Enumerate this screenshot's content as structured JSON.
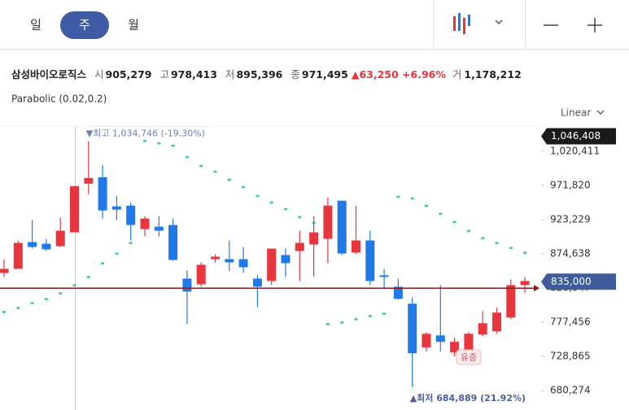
{
  "toolbar": {
    "tabs": [
      "일",
      "주",
      "월"
    ],
    "selected": 1
  },
  "info": {
    "name": "삼성바이오로직스",
    "fields": [
      {
        "label": "시",
        "value": "905,279"
      },
      {
        "label": "고",
        "value": "978,413"
      },
      {
        "label": "저",
        "value": "895,396"
      },
      {
        "label": "종",
        "value": "971,495"
      }
    ],
    "change": "▲63,250 +6.96%",
    "volume_label": "거",
    "volume": "1,178,212"
  },
  "chart_data": {
    "type": "candlestick",
    "indicator": "Parabolic (0.02,0.2)",
    "scale": "Linear",
    "up_color": "#e8363f",
    "down_color": "#1f7ae8",
    "sar_color": "#2fd09b",
    "ylim": [
      652600,
      1055100
    ],
    "yticks": [
      {
        "value": 680274,
        "label": "680,274"
      },
      {
        "value": 728865,
        "label": "728,865"
      },
      {
        "value": 777456,
        "label": "777,456"
      },
      {
        "value": 826047,
        "label": "826,047"
      },
      {
        "value": 874638,
        "label": "874,638"
      },
      {
        "value": 923229,
        "label": "923,229"
      },
      {
        "value": 971820,
        "label": "971,820"
      },
      {
        "value": 1020411,
        "label": "1,020,411"
      }
    ],
    "open": [
      847500,
      853300,
      891300,
      889000,
      885600,
      905200,
      974400,
      983600,
      942100,
      943200,
      909800,
      913300,
      915600,
      839400,
      831400,
      867100,
      867100,
      867100,
      839400,
      836000,
      872900,
      878700,
      887900,
      896000,
      950200,
      876400,
      893700,
      844100,
      827900,
      803700,
      741400,
      758700,
      734500,
      737900,
      759900,
      764500,
      784100,
      830200
    ],
    "high": [
      867100,
      893700,
      922500,
      896000,
      925900,
      970900,
      1034746,
      1000900,
      957100,
      947900,
      928300,
      928300,
      924800,
      851000,
      862500,
      874000,
      893700,
      884400,
      844100,
      882100,
      882100,
      907500,
      928300,
      954800,
      950200,
      943200,
      907500,
      853300,
      839400,
      812900,
      763300,
      830200,
      755200,
      763300,
      793300,
      797900,
      838300,
      841800
    ],
    "low": [
      841800,
      853300,
      882100,
      878700,
      884400,
      905200,
      959400,
      924800,
      922500,
      893700,
      899400,
      899400,
      864800,
      774900,
      827900,
      862500,
      849800,
      847500,
      799100,
      830200,
      841800,
      836000,
      841800,
      861400,
      872900,
      874000,
      830200,
      824400,
      809500,
      684889,
      735600,
      735600,
      728700,
      735600,
      757600,
      761000,
      781800,
      818700
    ],
    "close": [
      853300,
      890200,
      884400,
      881000,
      907500,
      970900,
      982500,
      936300,
      937500,
      915600,
      924800,
      907500,
      866000,
      821000,
      859100,
      870600,
      862500,
      855600,
      827900,
      882100,
      861400,
      890200,
      905200,
      943200,
      875200,
      893700,
      836000,
      841800,
      810600,
      733300,
      761000,
      749500,
      749500,
      761000,
      776000,
      791000,
      830200,
      836000
    ],
    "sar": [
      792200,
      797900,
      804800,
      810600,
      818700,
      830200,
      841800,
      861400,
      875200,
      890200,
      1035500,
      1032100,
      1028600,
      1012500,
      999800,
      991700,
      980200,
      969800,
      957100,
      947900,
      938600,
      927100,
      919000,
      774900,
      777200,
      781800,
      786400,
      789800,
      955900,
      953600,
      943200,
      931700,
      920200,
      907500,
      897100,
      890200,
      883300,
      876400
    ],
    "current_price": {
      "value": 835000,
      "label": "835,000"
    },
    "top_label": {
      "value": 1046408,
      "label": "1,046,408"
    },
    "high_note": "▼최고 1,034,746 (-19.30%)",
    "low_note": "▲최저 684,889 (21.92%)",
    "event_note": "유증"
  }
}
